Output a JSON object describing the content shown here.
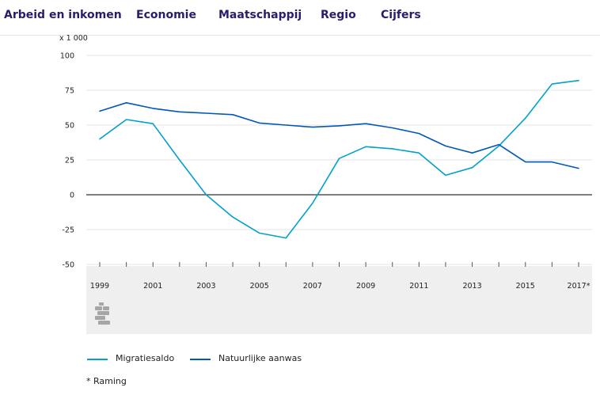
{
  "nav": {
    "items": [
      "Arbeid en inkomen",
      "Economie",
      "Maatschappij",
      "Regio",
      "Cijfers"
    ]
  },
  "chart_data": {
    "type": "line",
    "ylabel": "x 1 000",
    "ylim": [
      -50,
      100
    ],
    "yticks": [
      100,
      75,
      50,
      25,
      0,
      -25,
      -50
    ],
    "x": [
      1999,
      2000,
      2001,
      2002,
      2003,
      2004,
      2005,
      2006,
      2007,
      2008,
      2009,
      2010,
      2011,
      2012,
      2013,
      2014,
      2015,
      2016,
      2017
    ],
    "xtick_labels": [
      "1999",
      "2001",
      "2003",
      "2005",
      "2007",
      "2009",
      "2011",
      "2013",
      "2015",
      "2017*"
    ],
    "grid": true,
    "series": [
      {
        "name": "Migratiesaldo",
        "color": "#00a1cd",
        "values": [
          40,
          54,
          51,
          25,
          0,
          -16,
          -27.5,
          -31,
          -6,
          26,
          34.5,
          33,
          30,
          14,
          19.5,
          35,
          55,
          79.5,
          82
        ]
      },
      {
        "name": "Natuurlijke aanwas",
        "color": "#0058b8",
        "values": [
          60,
          66,
          62,
          59.5,
          58.5,
          57.5,
          51.5,
          50,
          48.5,
          49.5,
          51,
          48,
          44,
          35,
          30,
          36,
          23.5,
          23.5,
          19
        ]
      }
    ]
  },
  "footnote": "* Raming",
  "colors": {
    "nav_text": "#271d6c",
    "axis_band": "#efefef",
    "grid": "#e5e5e5",
    "zero_line": "#333333"
  }
}
